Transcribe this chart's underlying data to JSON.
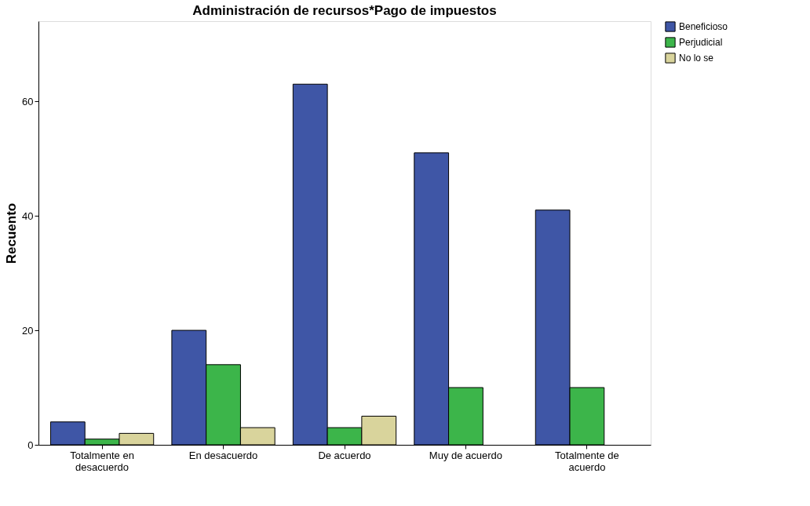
{
  "chart_data": {
    "type": "bar",
    "title": "Administración de recursos*Pago de impuestos",
    "ylabel": "Recuento",
    "categories": [
      "Totalmente en desacuerdo",
      "En desacuerdo",
      "De acuerdo",
      "Muy de acuerdo",
      "Totalmente de acuerdo"
    ],
    "series": [
      {
        "name": "Beneficioso",
        "color": "#3f56a6",
        "values": [
          4,
          20,
          63,
          51,
          41
        ]
      },
      {
        "name": "Perjudicial",
        "color": "#3cb54a",
        "values": [
          1,
          14,
          3,
          10,
          10
        ]
      },
      {
        "name": "No lo se",
        "color": "#d9d49c",
        "values": [
          2,
          3,
          5,
          null,
          null
        ]
      }
    ],
    "ylim": [
      0,
      74
    ],
    "yticks": [
      0,
      20,
      40,
      60
    ],
    "grid": false,
    "legend": "right"
  }
}
